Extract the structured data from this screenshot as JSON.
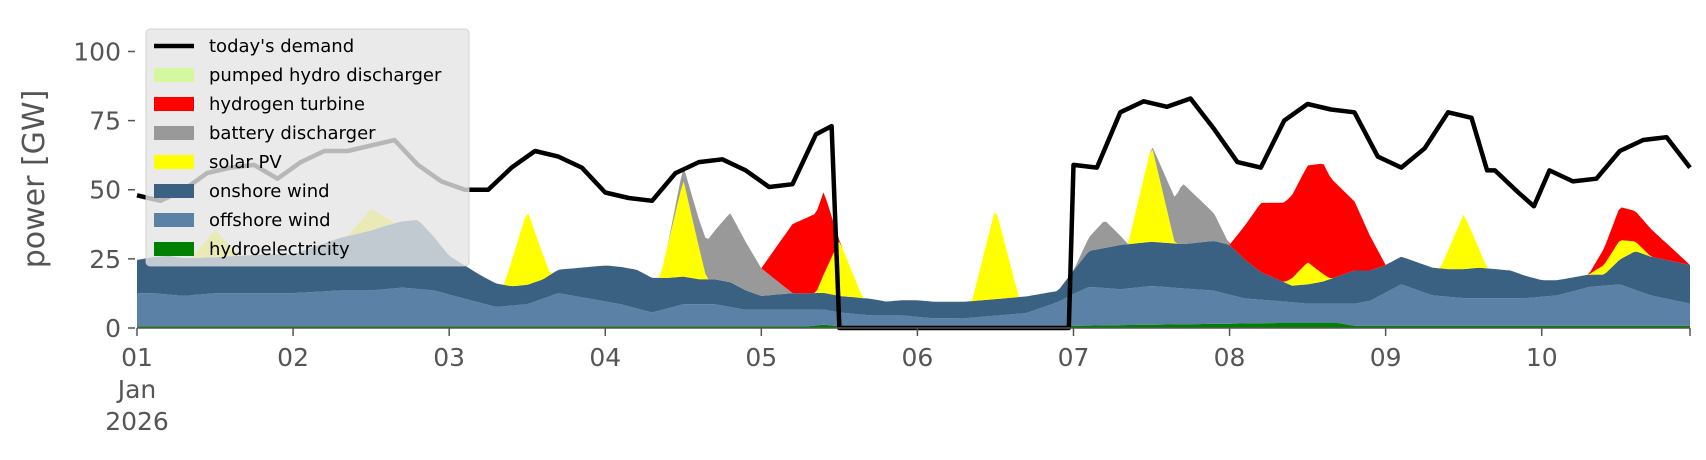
{
  "chart_data": {
    "type": "area",
    "ylabel": "power [GW]",
    "ylim": [
      0,
      115
    ],
    "x_unit": "day",
    "xlim": [
      1,
      10.95
    ],
    "x_ticks": [
      {
        "x": 1,
        "lines": [
          "01",
          "Jan",
          "2026"
        ]
      },
      {
        "x": 2,
        "lines": [
          "02"
        ]
      },
      {
        "x": 3,
        "lines": [
          "03"
        ]
      },
      {
        "x": 4,
        "lines": [
          "04"
        ]
      },
      {
        "x": 5,
        "lines": [
          "05"
        ]
      },
      {
        "x": 6,
        "lines": [
          "06"
        ]
      },
      {
        "x": 7,
        "lines": [
          "07"
        ]
      },
      {
        "x": 8,
        "lines": [
          "08"
        ]
      },
      {
        "x": 9,
        "lines": [
          "09"
        ]
      },
      {
        "x": 10,
        "lines": [
          "10"
        ]
      }
    ],
    "y_ticks": [
      0,
      25,
      50,
      75,
      100
    ],
    "grid": false,
    "legend_position": "top-left",
    "legend": [
      {
        "label": "today's demand",
        "kind": "line",
        "color": "#000000"
      },
      {
        "label": "pumped hydro discharger",
        "kind": "patch",
        "color": "#d4f7a0"
      },
      {
        "label": "hydrogen turbine",
        "kind": "patch",
        "color": "#ff0000"
      },
      {
        "label": "battery discharger",
        "kind": "patch",
        "color": "#999999"
      },
      {
        "label": "solar PV",
        "kind": "patch",
        "color": "#ffff00"
      },
      {
        "label": "onshore wind",
        "kind": "patch",
        "color": "#3b6182"
      },
      {
        "label": "offshore wind",
        "kind": "patch",
        "color": "#5b82a6"
      },
      {
        "label": "hydroelectricity",
        "kind": "patch",
        "color": "#008000"
      }
    ],
    "series": [
      {
        "name": "hydroelectricity",
        "color": "#008000",
        "x": [
          1,
          5.3,
          5.4,
          5.5,
          6.9,
          7.0,
          8.3,
          8.7,
          8.8,
          10.95
        ],
        "values": [
          0.6,
          0.6,
          1.2,
          0.6,
          0.4,
          0.8,
          1.8,
          1.8,
          0.8,
          0.8
        ]
      },
      {
        "name": "offshore wind",
        "color": "#5b82a6",
        "x": [
          1,
          1.1,
          1.3,
          1.5,
          1.7,
          2.0,
          2.3,
          2.5,
          2.7,
          2.9,
          3.1,
          3.3,
          3.5,
          3.7,
          3.9,
          4.1,
          4.3,
          4.5,
          4.7,
          4.9,
          5.1,
          5.3,
          5.5,
          5.7,
          5.9,
          6.1,
          6.3,
          6.5,
          6.7,
          6.9,
          7.1,
          7.3,
          7.5,
          7.7,
          7.9,
          8.1,
          8.3,
          8.5,
          8.7,
          8.9,
          9.1,
          9.3,
          9.5,
          9.7,
          9.9,
          10.1,
          10.3,
          10.5,
          10.7,
          10.95
        ],
        "values": [
          12,
          12,
          11,
          12,
          12,
          12,
          13,
          13,
          14,
          13,
          10,
          7,
          8,
          12,
          10,
          8,
          5,
          8,
          8,
          6,
          6,
          6,
          5,
          4,
          4,
          3,
          3,
          4,
          5,
          9,
          14,
          13,
          14,
          13,
          12,
          9,
          8,
          7,
          7,
          9,
          15,
          11,
          10,
          10,
          10,
          11,
          14,
          15,
          11,
          8
        ]
      },
      {
        "name": "onshore wind",
        "color": "#3b6182",
        "x": [
          1,
          1.2,
          1.5,
          1.8,
          2.0,
          2.3,
          2.6,
          2.8,
          3.0,
          3.2,
          3.4,
          3.6,
          3.8,
          4.0,
          4.2,
          4.4,
          4.6,
          4.8,
          5.0,
          5.2,
          5.4,
          5.6,
          5.7,
          5.8,
          6.0,
          6.2,
          6.3,
          6.5,
          6.7,
          6.9,
          7.1,
          7.3,
          7.5,
          7.7,
          7.9,
          8.0,
          8.2,
          8.4,
          8.6,
          8.8,
          9.0,
          9.2,
          9.4,
          9.6,
          9.8,
          10.0,
          10.2,
          10.4,
          10.6,
          10.8,
          10.95
        ],
        "values": [
          12,
          14,
          13,
          14,
          14,
          19,
          23,
          25,
          14,
          10,
          7,
          7,
          10,
          13,
          14,
          11,
          9,
          9,
          5,
          6,
          6,
          6,
          6,
          5,
          6,
          6,
          6,
          6,
          6,
          4,
          13,
          16,
          16,
          16,
          18,
          18,
          10,
          6,
          8,
          12,
          10,
          10,
          10,
          11,
          10,
          6,
          5,
          4,
          14,
          14,
          14
        ]
      },
      {
        "name": "solar PV",
        "color": "#ffff00",
        "x": [
          1,
          1.35,
          1.5,
          1.65,
          1.8,
          2.35,
          2.5,
          2.65,
          2.8,
          3.35,
          3.5,
          3.65,
          3.8,
          4.35,
          4.5,
          4.65,
          4.8,
          5.35,
          5.5,
          5.65,
          5.8,
          6.35,
          6.5,
          6.65,
          6.8,
          7.35,
          7.5,
          7.65,
          7.8,
          8.35,
          8.5,
          8.65,
          8.8,
          9.35,
          9.5,
          9.65,
          9.8,
          10.3,
          10.5,
          10.7,
          10.95
        ],
        "values": [
          0,
          0,
          10,
          0,
          0,
          0,
          8,
          0,
          0,
          0,
          27,
          0,
          0,
          0,
          35,
          0,
          0,
          0,
          20,
          0,
          0,
          0,
          33,
          0,
          0,
          0,
          35,
          0,
          0,
          0,
          8,
          0,
          0,
          0,
          20,
          0,
          0,
          0,
          7,
          0,
          0
        ]
      },
      {
        "name": "battery discharger",
        "color": "#999999",
        "x": [
          1,
          3.8,
          4.0,
          4.4,
          4.6,
          4.8,
          5.0,
          5.2,
          7.0,
          7.2,
          7.35,
          7.5,
          7.7,
          7.9,
          8.0,
          10.95
        ],
        "values": [
          0,
          0,
          0,
          0,
          10,
          25,
          10,
          0,
          0,
          10,
          0,
          0,
          22,
          10,
          0,
          0
        ]
      },
      {
        "name": "hydrogen turbine",
        "color": "#ff0000",
        "x": [
          1,
          5.0,
          5.2,
          5.4,
          5.5,
          8.0,
          8.2,
          8.4,
          8.6,
          8.8,
          9.0,
          10.3,
          10.5,
          10.7,
          10.95
        ],
        "values": [
          0,
          0,
          25,
          30,
          0,
          0,
          25,
          30,
          40,
          25,
          0,
          0,
          12,
          10,
          0
        ]
      }
    ],
    "demand": {
      "name": "today's demand",
      "color": "#000000",
      "x": [
        1,
        1.15,
        1.3,
        1.45,
        1.6,
        1.75,
        1.9,
        2.05,
        2.2,
        2.35,
        2.5,
        2.65,
        2.8,
        2.95,
        3.1,
        3.25,
        3.4,
        3.55,
        3.7,
        3.85,
        4.0,
        4.15,
        4.3,
        4.45,
        4.6,
        4.75,
        4.9,
        5.05,
        5.2,
        5.35,
        5.45,
        5.5,
        6.97,
        7.0,
        7.15,
        7.3,
        7.45,
        7.6,
        7.75,
        7.9,
        8.05,
        8.2,
        8.35,
        8.5,
        8.65,
        8.8,
        8.95,
        9.1,
        9.25,
        9.4,
        9.55,
        9.65,
        9.7,
        9.85,
        9.95,
        10.05,
        10.2,
        10.35,
        10.5,
        10.65,
        10.8,
        10.95
      ],
      "values": [
        48,
        46,
        50,
        56,
        58,
        59,
        54,
        60,
        64,
        64,
        66,
        68,
        59,
        53,
        50,
        50,
        58,
        64,
        62,
        58,
        49,
        47,
        46,
        56,
        60,
        61,
        57,
        51,
        52,
        70,
        73,
        0,
        0,
        59,
        58,
        78,
        82,
        80,
        83,
        72,
        60,
        58,
        75,
        81,
        79,
        78,
        62,
        58,
        65,
        78,
        76,
        57,
        57,
        49,
        44,
        57,
        53,
        54,
        64,
        68,
        69,
        58
      ]
    }
  }
}
